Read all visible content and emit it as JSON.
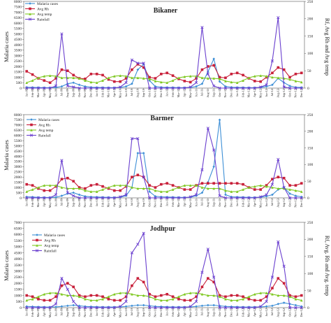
{
  "chart_data": [
    {
      "type": "line",
      "title": "Bikaner",
      "ylabel_left": "Malaria cases",
      "ylabel_right": "Rf, Avg Rh and Avg temp",
      "ylim_left": [
        0,
        8000
      ],
      "yticks_left": [
        "0",
        "500",
        "1000",
        "1500",
        "2000",
        "2500",
        "3000",
        "3500",
        "4000",
        "4500",
        "5000",
        "5500",
        "6000",
        "6500",
        "7000",
        "7500",
        "8000"
      ],
      "ylim_right": [
        0,
        250
      ],
      "yticks_right": [
        "0",
        "50",
        "100",
        "150",
        "200",
        "250"
      ],
      "categories": [
        "Jan-09",
        "Feb-09",
        "Mar-09",
        "Apr-09",
        "May-09",
        "Jun-09",
        "Jul-09",
        "Aug-09",
        "Sep-09",
        "Oct-09",
        "Nov-09",
        "Dec-09",
        "Jan-10",
        "Feb-10",
        "Mar-10",
        "Apr-10",
        "May-10",
        "Jun-10",
        "Jul-10",
        "Aug-10",
        "Sep-10",
        "Oct-10",
        "Nov-10",
        "Dec-10",
        "Jan-11",
        "Feb-11",
        "Mar-11",
        "Apr-11",
        "May-11",
        "Jun-11",
        "Jul-11",
        "Aug-11",
        "Sep-11",
        "Oct-11",
        "Nov-11",
        "Dec-11",
        "Jan-12",
        "Feb-12",
        "Mar-12",
        "Apr-12",
        "May-12",
        "Jun-12",
        "Jul-12",
        "Aug-12",
        "Sep-12",
        "Oct-12",
        "Nov-12",
        "Dec-12"
      ],
      "series": [
        {
          "name": "Malaria cases",
          "axis": "left",
          "color": "#3d8fd6",
          "marker": "diamond",
          "values": [
            80,
            60,
            50,
            40,
            40,
            60,
            150,
            400,
            500,
            300,
            150,
            80,
            60,
            50,
            40,
            40,
            60,
            150,
            400,
            1700,
            2200,
            700,
            150,
            80,
            60,
            50,
            40,
            40,
            60,
            150,
            400,
            1500,
            2700,
            600,
            150,
            80,
            60,
            50,
            40,
            40,
            60,
            150,
            300,
            900,
            500,
            200,
            80,
            60
          ]
        },
        {
          "name": "Avg Rh",
          "axis": "left",
          "color": "#c8203a",
          "marker": "square",
          "values": [
            1550,
            1250,
            900,
            700,
            500,
            900,
            1700,
            1600,
            1200,
            900,
            850,
            1300,
            1300,
            1200,
            800,
            600,
            600,
            900,
            1700,
            2200,
            1900,
            1000,
            900,
            1300,
            1400,
            1150,
            850,
            650,
            550,
            900,
            1700,
            2000,
            2100,
            1000,
            950,
            1300,
            1400,
            1200,
            900,
            650,
            600,
            1000,
            1400,
            1900,
            1700,
            1000,
            1300,
            1400
          ]
        },
        {
          "name": "Avg temp",
          "axis": "left",
          "color": "#7ec820",
          "marker": "triangle",
          "values": [
            500,
            700,
            950,
            1100,
            1150,
            1100,
            950,
            950,
            950,
            900,
            700,
            550,
            500,
            700,
            950,
            1100,
            1150,
            1100,
            950,
            950,
            900,
            850,
            650,
            550,
            500,
            700,
            950,
            1050,
            1100,
            1100,
            950,
            900,
            900,
            850,
            650,
            550,
            500,
            700,
            950,
            1100,
            1150,
            1100,
            1000,
            950,
            900,
            800,
            650,
            550
          ]
        },
        {
          "name": "Rainfall",
          "axis": "left",
          "color": "#6a3fcf",
          "marker": "x",
          "values": [
            0,
            0,
            0,
            0,
            0,
            200,
            5000,
            200,
            100,
            0,
            0,
            0,
            0,
            0,
            0,
            0,
            100,
            500,
            2600,
            2300,
            2300,
            0,
            0,
            0,
            0,
            0,
            0,
            0,
            100,
            500,
            5600,
            1300,
            200,
            0,
            0,
            0,
            0,
            0,
            0,
            0,
            100,
            300,
            2500,
            6500,
            100,
            0,
            0,
            0
          ]
        }
      ]
    },
    {
      "type": "line",
      "title": "Barmer",
      "ylabel_left": "Malaria cases",
      "ylim_left": [
        0,
        8000
      ],
      "yticks_left": [
        "0",
        "500",
        "1000",
        "1500",
        "2000",
        "2500",
        "3000",
        "3500",
        "4000",
        "4500",
        "5000",
        "5500",
        "6000",
        "6500",
        "7000",
        "7500",
        "8000"
      ],
      "ylim_right": [
        0,
        250
      ],
      "yticks_right": [
        "0",
        "50",
        "100",
        "150",
        "200",
        "250"
      ],
      "categories": [
        "Jan-09",
        "Feb-09",
        "Mar-09",
        "Apr-09",
        "May-09",
        "Jun-09",
        "Jul-09",
        "Aug-09",
        "Sep-09",
        "Oct-09",
        "Nov-09",
        "Dec-09",
        "Jan-10",
        "Feb-10",
        "Mar-10",
        "Apr-10",
        "May-10",
        "Jun-10",
        "Jul-10",
        "Aug-10",
        "Sep-10",
        "Oct-10",
        "Nov-10",
        "Dec-10",
        "Jan-11",
        "Feb-11",
        "Mar-11",
        "Apr-11",
        "May-11",
        "Jun-11",
        "Jul-11",
        "Aug-11",
        "Sep-11",
        "Oct-11",
        "Nov-11",
        "Dec-11",
        "Jan-12",
        "Feb-12",
        "Mar-12",
        "Apr-12",
        "May-12",
        "Jun-12",
        "Jul-12",
        "Aug-12",
        "Sep-12",
        "Oct-12",
        "Nov-12",
        "Dec-12"
      ],
      "series": [
        {
          "name": "Malaria cases",
          "axis": "left",
          "color": "#3d8fd6",
          "marker": "diamond",
          "values": [
            100,
            80,
            50,
            40,
            40,
            60,
            200,
            400,
            500,
            300,
            150,
            100,
            80,
            60,
            50,
            40,
            60,
            200,
            1000,
            4300,
            4300,
            600,
            150,
            100,
            80,
            60,
            50,
            40,
            60,
            200,
            500,
            1500,
            3000,
            7500,
            300,
            100,
            80,
            60,
            50,
            40,
            60,
            150,
            300,
            800,
            1000,
            400,
            200,
            100
          ]
        },
        {
          "name": "Avg Rh",
          "axis": "left",
          "color": "#c8203a",
          "marker": "square",
          "values": [
            1300,
            1200,
            900,
            700,
            700,
            1100,
            1800,
            1900,
            1600,
            1000,
            900,
            1200,
            1300,
            1100,
            900,
            700,
            700,
            1100,
            2000,
            2200,
            2000,
            1200,
            1000,
            1300,
            1400,
            1200,
            1000,
            800,
            800,
            1200,
            1400,
            1400,
            1400,
            1400,
            1400,
            1400,
            1400,
            1300,
            1000,
            800,
            800,
            1200,
            1800,
            2000,
            1900,
            1200,
            1200,
            1400
          ]
        },
        {
          "name": "Avg temp",
          "axis": "left",
          "color": "#7ec820",
          "marker": "triangle",
          "values": [
            600,
            800,
            1000,
            1200,
            1200,
            1200,
            1000,
            900,
            900,
            900,
            700,
            600,
            600,
            800,
            1000,
            1200,
            1200,
            1200,
            1000,
            900,
            900,
            900,
            700,
            600,
            600,
            800,
            1000,
            1200,
            1200,
            1200,
            1000,
            900,
            900,
            900,
            700,
            600,
            600,
            800,
            1000,
            1100,
            1200,
            1100,
            1000,
            900,
            900,
            800,
            700,
            600
          ]
        },
        {
          "name": "Rainfall",
          "axis": "left",
          "color": "#6a3fcf",
          "marker": "x",
          "values": [
            0,
            0,
            0,
            0,
            0,
            300,
            3600,
            500,
            200,
            0,
            0,
            0,
            0,
            0,
            0,
            0,
            100,
            300,
            5700,
            5700,
            2000,
            0,
            0,
            0,
            0,
            0,
            0,
            0,
            100,
            300,
            2700,
            6700,
            4600,
            200,
            0,
            0,
            0,
            0,
            0,
            0,
            100,
            300,
            1300,
            3700,
            1000,
            0,
            0,
            0
          ]
        }
      ]
    },
    {
      "type": "line",
      "title": "Jodhpur",
      "ylabel_left": "Malaria cases",
      "ylabel_right": "Rf, Avg. Rh and Avg. temp",
      "ylim_left": [
        0,
        7000
      ],
      "yticks_left": [
        "0",
        "500",
        "1000",
        "1500",
        "2000",
        "2500",
        "3000",
        "3500",
        "4000",
        "4500",
        "5000",
        "5500",
        "6000",
        "6500",
        "7000"
      ],
      "ylim_right": [
        0,
        250
      ],
      "yticks_right": [
        "0",
        "50",
        "100",
        "150",
        "200",
        "250"
      ],
      "categories": [
        "Jan-09",
        "Feb-09",
        "Mar-09",
        "Apr-09",
        "May-09",
        "Jun-09",
        "Jul-09",
        "Aug-09",
        "Sep-09",
        "Oct-09",
        "Nov-09",
        "Dec-09",
        "Jan-10",
        "Feb-10",
        "Mar-10",
        "Apr-10",
        "May-10",
        "Jun-10",
        "Jul-10",
        "Aug-10",
        "Sep-10",
        "Oct-10",
        "Nov-10",
        "Dec-10",
        "Jan-11",
        "Feb-11",
        "Mar-11",
        "Apr-11",
        "May-11",
        "Jun-11",
        "Jul-11",
        "Aug-11",
        "Sep-11",
        "Oct-11",
        "Nov-11",
        "Dec-11",
        "Jan-12",
        "Feb-12",
        "Mar-12",
        "Apr-12",
        "May-12",
        "Jun-12",
        "Jul-12",
        "Aug-12",
        "Sep-12",
        "Oct-12",
        "Nov-12",
        "Dec-12"
      ],
      "series": [
        {
          "name": "Malaria cases",
          "axis": "left",
          "color": "#3d8fd6",
          "marker": "diamond",
          "values": [
            100,
            80,
            60,
            50,
            50,
            60,
            100,
            150,
            200,
            150,
            100,
            80,
            60,
            50,
            50,
            50,
            60,
            100,
            150,
            200,
            200,
            150,
            100,
            80,
            60,
            50,
            50,
            50,
            60,
            100,
            150,
            200,
            200,
            150,
            100,
            80,
            60,
            50,
            50,
            50,
            60,
            100,
            150,
            300,
            400,
            300,
            200,
            100
          ]
        },
        {
          "name": "Avg Rh",
          "axis": "left",
          "color": "#c8203a",
          "marker": "square",
          "values": [
            1000,
            900,
            700,
            600,
            600,
            900,
            1800,
            2000,
            1700,
            1000,
            900,
            1000,
            1000,
            900,
            700,
            600,
            600,
            900,
            1800,
            2400,
            2100,
            1100,
            900,
            1000,
            1100,
            900,
            700,
            600,
            600,
            900,
            1700,
            2400,
            2100,
            1000,
            900,
            1000,
            1000,
            900,
            700,
            600,
            600,
            900,
            1600,
            2400,
            2000,
            1000,
            900,
            1000
          ]
        },
        {
          "name": "Avg temp",
          "axis": "left",
          "color": "#7ec820",
          "marker": "triangle",
          "values": [
            600,
            700,
            900,
            1100,
            1200,
            1200,
            1100,
            1000,
            1000,
            900,
            700,
            600,
            600,
            700,
            900,
            1100,
            1200,
            1200,
            1100,
            1000,
            1000,
            900,
            700,
            600,
            600,
            700,
            900,
            1100,
            1200,
            1200,
            1100,
            1000,
            1000,
            900,
            700,
            600,
            600,
            700,
            900,
            1100,
            1200,
            1200,
            1100,
            1000,
            1000,
            900,
            700,
            600
          ]
        },
        {
          "name": "Rainfall",
          "axis": "left",
          "color": "#6a3fcf",
          "marker": "x",
          "values": [
            0,
            0,
            0,
            0,
            0,
            300,
            2400,
            1500,
            500,
            0,
            0,
            0,
            0,
            0,
            0,
            0,
            100,
            500,
            4500,
            5200,
            6100,
            0,
            0,
            0,
            0,
            0,
            0,
            0,
            100,
            500,
            2900,
            4800,
            2500,
            0,
            0,
            0,
            0,
            0,
            0,
            0,
            100,
            500,
            2500,
            5400,
            3400,
            0,
            0,
            0
          ]
        }
      ]
    }
  ]
}
